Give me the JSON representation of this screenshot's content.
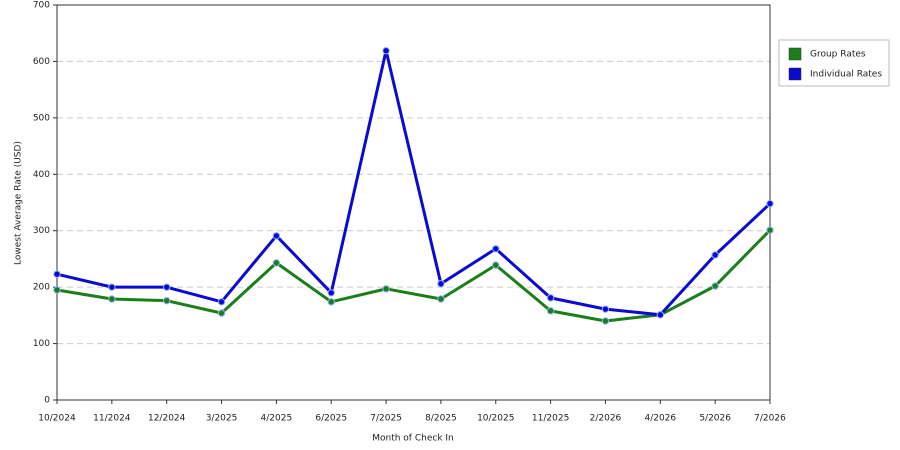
{
  "chart_data": {
    "type": "line",
    "x_label": "Month of Check In",
    "y_label": "Lowest Average Rate (USD)",
    "categories": [
      "10/2024",
      "11/2024",
      "12/2024",
      "3/2025",
      "4/2025",
      "6/2025",
      "7/2025",
      "8/2025",
      "10/2025",
      "11/2025",
      "2/2026",
      "4/2026",
      "5/2026",
      "7/2026"
    ],
    "series": [
      {
        "name": "Group Rates",
        "color": "#1a7f1a",
        "values": [
          195,
          179,
          176,
          154,
          243,
          174,
          197,
          179,
          239,
          158,
          140,
          151,
          202,
          301
        ]
      },
      {
        "name": "Individual Rates",
        "color": "#0a0ad0",
        "values": [
          223,
          200,
          200,
          174,
          291,
          190,
          619,
          206,
          268,
          181,
          161,
          151,
          257,
          348
        ]
      }
    ],
    "ylim": [
      0,
      700
    ],
    "yticks": [
      0,
      100,
      200,
      300,
      400,
      500,
      600,
      700
    ],
    "grid": true,
    "legend": "right"
  }
}
